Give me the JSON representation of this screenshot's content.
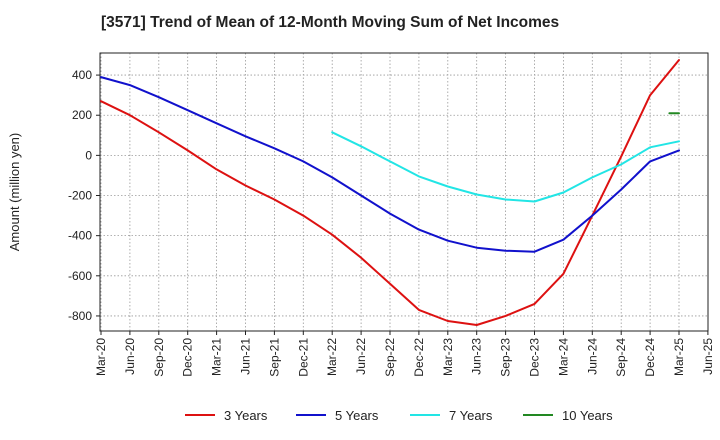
{
  "chart_data": {
    "type": "line",
    "title": "[3571]  Trend of Mean of 12-Month Moving Sum of Net Incomes",
    "ylabel": "Amount (million yen)",
    "xlabel": "",
    "x_ticks": [
      "Mar-20",
      "Jun-20",
      "Sep-20",
      "Dec-20",
      "Mar-21",
      "Jun-21",
      "Sep-21",
      "Dec-21",
      "Mar-22",
      "Jun-22",
      "Sep-22",
      "Dec-22",
      "Mar-23",
      "Jun-23",
      "Sep-23",
      "Dec-23",
      "Mar-24",
      "Jun-24",
      "Sep-24",
      "Dec-24",
      "Mar-25",
      "Jun-25"
    ],
    "y_ticks": [
      400,
      200,
      0,
      -200,
      -400,
      -600,
      -800
    ],
    "ylim": [
      -875,
      510
    ],
    "grid": true,
    "legend_position": "bottom",
    "series": [
      {
        "name": "3 Years",
        "color": "#dd1111",
        "points": [
          [
            "Mar-20",
            270
          ],
          [
            "Jun-20",
            200
          ],
          [
            "Sep-20",
            115
          ],
          [
            "Dec-20",
            25
          ],
          [
            "Mar-21",
            -70
          ],
          [
            "Jun-21",
            -150
          ],
          [
            "Sep-21",
            -220
          ],
          [
            "Dec-21",
            -300
          ],
          [
            "Mar-22",
            -395
          ],
          [
            "Jun-22",
            -510
          ],
          [
            "Sep-22",
            -640
          ],
          [
            "Dec-22",
            -770
          ],
          [
            "Mar-23",
            -825
          ],
          [
            "Jun-23",
            -845
          ],
          [
            "Sep-23",
            -800
          ],
          [
            "Dec-23",
            -740
          ],
          [
            "Mar-24",
            -590
          ],
          [
            "Jun-24",
            -300
          ],
          [
            "Sep-24",
            -5
          ],
          [
            "Dec-24",
            300
          ],
          [
            "Mar-25",
            475
          ]
        ]
      },
      {
        "name": "5 Years",
        "color": "#1111cc",
        "points": [
          [
            "Mar-20",
            390
          ],
          [
            "Jun-20",
            350
          ],
          [
            "Sep-20",
            290
          ],
          [
            "Dec-20",
            225
          ],
          [
            "Mar-21",
            160
          ],
          [
            "Jun-21",
            95
          ],
          [
            "Sep-21",
            35
          ],
          [
            "Dec-21",
            -30
          ],
          [
            "Mar-22",
            -110
          ],
          [
            "Jun-22",
            -200
          ],
          [
            "Sep-22",
            -290
          ],
          [
            "Dec-22",
            -370
          ],
          [
            "Mar-23",
            -425
          ],
          [
            "Jun-23",
            -460
          ],
          [
            "Sep-23",
            -475
          ],
          [
            "Dec-23",
            -480
          ],
          [
            "Mar-24",
            -420
          ],
          [
            "Jun-24",
            -300
          ],
          [
            "Sep-24",
            -170
          ],
          [
            "Dec-24",
            -30
          ],
          [
            "Mar-25",
            25
          ]
        ]
      },
      {
        "name": "7 Years",
        "color": "#22e5e5",
        "points": [
          [
            "Mar-22",
            115
          ],
          [
            "Jun-22",
            45
          ],
          [
            "Sep-22",
            -30
          ],
          [
            "Dec-22",
            -105
          ],
          [
            "Mar-23",
            -155
          ],
          [
            "Jun-23",
            -195
          ],
          [
            "Sep-23",
            -220
          ],
          [
            "Dec-23",
            -230
          ],
          [
            "Mar-24",
            -185
          ],
          [
            "Jun-24",
            -110
          ],
          [
            "Sep-24",
            -45
          ],
          [
            "Dec-24",
            40
          ],
          [
            "Mar-25",
            70
          ]
        ]
      },
      {
        "name": "10 Years",
        "color": "#228822",
        "points": [
          [
            "Feb-25",
            210
          ],
          [
            "Mar-25",
            210
          ]
        ]
      }
    ]
  }
}
